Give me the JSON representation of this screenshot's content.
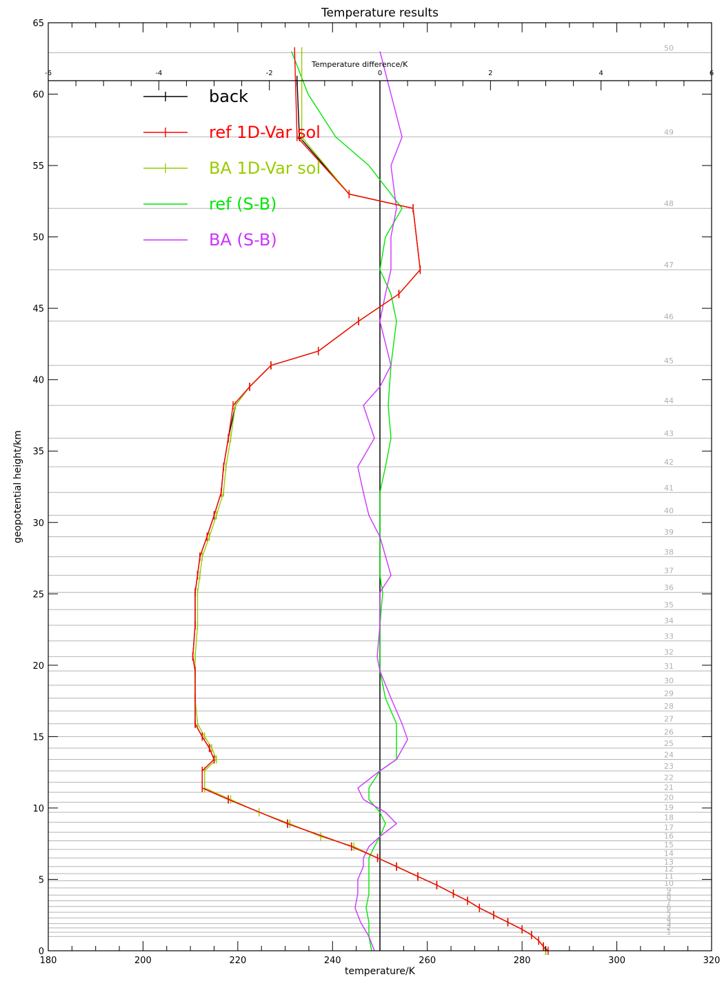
{
  "chart_data": {
    "type": "line",
    "title": "Temperature results",
    "xlabel": "temperature/K",
    "ylabel": "geopotential height/km",
    "x2label": "Temperature difference/K",
    "xlim": [
      180,
      320
    ],
    "ylim": [
      0,
      65
    ],
    "x2lim": [
      -6,
      6
    ],
    "xticks": [
      180,
      200,
      220,
      240,
      260,
      280,
      300,
      320
    ],
    "yticks": [
      0,
      5,
      10,
      15,
      20,
      25,
      30,
      35,
      40,
      45,
      50,
      55,
      60,
      65
    ],
    "x2ticks": [
      -6,
      -4,
      -2,
      0,
      2,
      4,
      6
    ],
    "x2tick_labels": [
      "-6",
      "-4",
      "-2",
      "0",
      "2",
      "4",
      "6"
    ],
    "legend_position": "top-left",
    "level_heights": [
      62.9,
      57.0,
      52.0,
      47.7,
      44.1,
      41.0,
      38.2,
      35.9,
      33.9,
      32.1,
      30.5,
      29.0,
      27.6,
      26.3,
      25.1,
      23.9,
      22.8,
      21.7,
      20.6,
      19.6,
      18.6,
      17.7,
      16.8,
      15.9,
      15.0,
      14.2,
      13.4,
      12.6,
      11.8,
      11.1,
      10.4,
      9.7,
      9.0,
      8.3,
      7.7,
      7.1,
      6.5,
      5.9,
      5.4,
      4.9,
      4.4,
      3.9,
      3.5,
      3.1,
      2.7,
      2.3,
      1.9,
      1.6,
      1.3,
      1.0
    ],
    "level_labels": [
      "50",
      "49",
      "48",
      "47",
      "46",
      "45",
      "44",
      "43",
      "42",
      "41",
      "40",
      "39",
      "38",
      "37",
      "36",
      "35",
      "34",
      "33",
      "32",
      "31",
      "30",
      "29",
      "28",
      "27",
      "26",
      "25",
      "24",
      "23",
      "22",
      "21",
      "20",
      "19",
      "18",
      "17",
      "16",
      "15",
      "14",
      "13",
      "12",
      "11",
      "10",
      "9",
      "8",
      "7",
      "6",
      "5",
      "4",
      "3",
      "2",
      "1"
    ],
    "series": [
      {
        "name": "back",
        "axis": "temperature",
        "color": "#000000",
        "markers": "plus",
        "points": [
          [
            232.5,
            61.0
          ],
          [
            233.0,
            57.0
          ],
          [
            243.5,
            53.0
          ],
          [
            257.0,
            52.0
          ],
          [
            258.5,
            47.7
          ],
          [
            254.0,
            46.0
          ],
          [
            245.5,
            44.1
          ],
          [
            237.0,
            42.0
          ],
          [
            227.0,
            41.0
          ],
          [
            222.5,
            39.5
          ],
          [
            219.5,
            38.2
          ],
          [
            218.0,
            35.9
          ],
          [
            217.0,
            33.9
          ],
          [
            216.5,
            32.1
          ],
          [
            215.0,
            30.5
          ],
          [
            213.5,
            29.0
          ],
          [
            212.0,
            27.6
          ],
          [
            211.5,
            26.3
          ],
          [
            211.0,
            25.1
          ],
          [
            211.0,
            22.8
          ],
          [
            210.5,
            20.6
          ],
          [
            211.0,
            19.6
          ],
          [
            211.0,
            17.7
          ],
          [
            211.0,
            15.9
          ],
          [
            212.5,
            15.0
          ],
          [
            214.0,
            14.2
          ],
          [
            215.0,
            13.4
          ],
          [
            212.5,
            12.6
          ],
          [
            212.5,
            11.4
          ],
          [
            218.0,
            10.6
          ],
          [
            230.5,
            8.9
          ],
          [
            244.0,
            7.3
          ],
          [
            249.5,
            6.5
          ],
          [
            253.5,
            5.9
          ],
          [
            258.0,
            5.2
          ],
          [
            262.0,
            4.6
          ],
          [
            265.5,
            4.0
          ],
          [
            268.5,
            3.5
          ],
          [
            271.0,
            3.0
          ],
          [
            274.0,
            2.5
          ],
          [
            277.0,
            2.0
          ],
          [
            280.0,
            1.5
          ],
          [
            282.0,
            1.1
          ],
          [
            283.5,
            0.7
          ],
          [
            284.5,
            0.3
          ],
          [
            285.0,
            0.0
          ]
        ]
      },
      {
        "name": "ref 1D-Var sol",
        "axis": "temperature",
        "color": "#ff0000",
        "markers": "plus",
        "points": [
          [
            232.0,
            63.0
          ],
          [
            232.5,
            57.0
          ],
          [
            243.5,
            53.0
          ],
          [
            257.0,
            52.0
          ],
          [
            258.5,
            47.7
          ],
          [
            254.0,
            46.0
          ],
          [
            245.5,
            44.1
          ],
          [
            237.0,
            42.0
          ],
          [
            227.0,
            41.0
          ],
          [
            222.5,
            39.5
          ],
          [
            219.0,
            38.2
          ],
          [
            218.0,
            35.9
          ],
          [
            217.0,
            33.9
          ],
          [
            216.5,
            32.1
          ],
          [
            215.0,
            30.5
          ],
          [
            213.5,
            29.0
          ],
          [
            212.0,
            27.6
          ],
          [
            211.5,
            26.3
          ],
          [
            211.0,
            25.1
          ],
          [
            211.0,
            22.8
          ],
          [
            210.5,
            20.6
          ],
          [
            211.0,
            19.6
          ],
          [
            211.0,
            17.7
          ],
          [
            211.0,
            15.9
          ],
          [
            212.5,
            15.0
          ],
          [
            214.0,
            14.2
          ],
          [
            215.0,
            13.4
          ],
          [
            212.5,
            12.6
          ],
          [
            212.5,
            11.4
          ],
          [
            218.0,
            10.6
          ],
          [
            230.5,
            8.9
          ],
          [
            244.0,
            7.3
          ],
          [
            249.5,
            6.5
          ],
          [
            253.5,
            5.9
          ],
          [
            258.0,
            5.2
          ],
          [
            262.0,
            4.6
          ],
          [
            265.5,
            4.0
          ],
          [
            268.5,
            3.5
          ],
          [
            271.0,
            3.0
          ],
          [
            274.0,
            2.5
          ],
          [
            277.0,
            2.0
          ],
          [
            280.0,
            1.5
          ],
          [
            282.0,
            1.1
          ],
          [
            283.5,
            0.7
          ],
          [
            284.5,
            0.3
          ],
          [
            285.5,
            0.0
          ]
        ]
      },
      {
        "name": "BA 1D-Var sol",
        "axis": "temperature",
        "color": "#99cc00",
        "markers": "plus",
        "points": [
          [
            233.5,
            63.0
          ],
          [
            233.5,
            57.0
          ],
          [
            243.5,
            53.0
          ],
          [
            257.0,
            52.0
          ],
          [
            258.5,
            47.7
          ],
          [
            254.0,
            46.0
          ],
          [
            245.5,
            44.1
          ],
          [
            237.0,
            42.0
          ],
          [
            227.0,
            41.0
          ],
          [
            222.5,
            39.5
          ],
          [
            219.5,
            38.2
          ],
          [
            218.5,
            35.9
          ],
          [
            217.5,
            33.9
          ],
          [
            217.0,
            32.1
          ],
          [
            215.5,
            30.5
          ],
          [
            214.0,
            29.0
          ],
          [
            212.5,
            27.6
          ],
          [
            212.0,
            26.3
          ],
          [
            211.5,
            25.1
          ],
          [
            211.5,
            22.8
          ],
          [
            211.0,
            20.6
          ],
          [
            211.0,
            19.6
          ],
          [
            211.0,
            17.7
          ],
          [
            211.5,
            15.9
          ],
          [
            213.0,
            15.0
          ],
          [
            214.5,
            14.2
          ],
          [
            215.5,
            13.4
          ],
          [
            213.0,
            12.6
          ],
          [
            213.0,
            11.4
          ],
          [
            218.5,
            10.6
          ],
          [
            224.5,
            9.7
          ],
          [
            231.0,
            8.9
          ],
          [
            237.5,
            8.0
          ],
          [
            244.5,
            7.3
          ],
          [
            249.5,
            6.5
          ],
          [
            253.5,
            5.9
          ],
          [
            258.0,
            5.2
          ],
          [
            262.0,
            4.6
          ],
          [
            265.5,
            4.0
          ],
          [
            268.5,
            3.5
          ],
          [
            271.0,
            3.0
          ],
          [
            274.0,
            2.5
          ],
          [
            277.0,
            2.0
          ],
          [
            280.0,
            1.5
          ],
          [
            282.0,
            1.1
          ],
          [
            283.5,
            0.7
          ],
          [
            284.5,
            0.3
          ],
          [
            285.0,
            0.0
          ]
        ]
      },
      {
        "name": "ref (S-B)",
        "axis": "difference",
        "color": "#00e600",
        "markers": "none",
        "points": [
          [
            -1.6,
            63.0
          ],
          [
            -1.3,
            60.0
          ],
          [
            -0.8,
            57.0
          ],
          [
            -0.2,
            55.0
          ],
          [
            0.4,
            52.0
          ],
          [
            0.1,
            50.0
          ],
          [
            0.0,
            47.7
          ],
          [
            0.2,
            46.0
          ],
          [
            0.3,
            44.1
          ],
          [
            0.2,
            41.0
          ],
          [
            0.15,
            38.2
          ],
          [
            0.2,
            35.9
          ],
          [
            0.1,
            33.9
          ],
          [
            0.0,
            32.1
          ],
          [
            0.0,
            29.0
          ],
          [
            0.0,
            26.3
          ],
          [
            0.05,
            25.1
          ],
          [
            0.0,
            22.8
          ],
          [
            0.0,
            19.6
          ],
          [
            0.1,
            17.7
          ],
          [
            0.3,
            15.9
          ],
          [
            0.3,
            14.2
          ],
          [
            0.3,
            13.4
          ],
          [
            0.0,
            12.6
          ],
          [
            -0.2,
            11.4
          ],
          [
            -0.2,
            10.6
          ],
          [
            0.0,
            9.7
          ],
          [
            0.1,
            8.9
          ],
          [
            0.0,
            8.0
          ],
          [
            -0.1,
            7.3
          ],
          [
            -0.2,
            6.5
          ],
          [
            -0.2,
            5.9
          ],
          [
            -0.2,
            5.2
          ],
          [
            -0.2,
            4.0
          ],
          [
            -0.25,
            3.0
          ],
          [
            -0.2,
            2.0
          ],
          [
            -0.2,
            1.0
          ],
          [
            -0.15,
            0.0
          ]
        ]
      },
      {
        "name": "BA (S-B)",
        "axis": "difference",
        "color": "#cc33ff",
        "markers": "none",
        "points": [
          [
            0.0,
            63.0
          ],
          [
            0.2,
            60.0
          ],
          [
            0.4,
            57.0
          ],
          [
            0.2,
            55.0
          ],
          [
            0.3,
            52.0
          ],
          [
            0.2,
            50.0
          ],
          [
            0.2,
            47.7
          ],
          [
            0.1,
            46.0
          ],
          [
            0.0,
            44.1
          ],
          [
            0.2,
            41.0
          ],
          [
            0.0,
            39.5
          ],
          [
            -0.3,
            38.2
          ],
          [
            -0.1,
            35.9
          ],
          [
            -0.4,
            33.9
          ],
          [
            -0.3,
            32.1
          ],
          [
            -0.2,
            30.5
          ],
          [
            0.0,
            29.0
          ],
          [
            0.2,
            26.3
          ],
          [
            0.0,
            25.1
          ],
          [
            0.0,
            22.8
          ],
          [
            -0.05,
            20.6
          ],
          [
            0.0,
            19.6
          ],
          [
            0.2,
            17.7
          ],
          [
            0.4,
            15.9
          ],
          [
            0.5,
            14.8
          ],
          [
            0.3,
            13.4
          ],
          [
            0.0,
            12.6
          ],
          [
            -0.4,
            11.4
          ],
          [
            -0.3,
            10.6
          ],
          [
            0.1,
            9.7
          ],
          [
            0.3,
            8.9
          ],
          [
            0.0,
            8.0
          ],
          [
            -0.2,
            7.3
          ],
          [
            -0.3,
            6.5
          ],
          [
            -0.3,
            5.9
          ],
          [
            -0.4,
            5.0
          ],
          [
            -0.4,
            4.0
          ],
          [
            -0.45,
            3.0
          ],
          [
            -0.35,
            2.0
          ],
          [
            -0.2,
            1.0
          ],
          [
            -0.1,
            0.0
          ]
        ]
      }
    ]
  }
}
